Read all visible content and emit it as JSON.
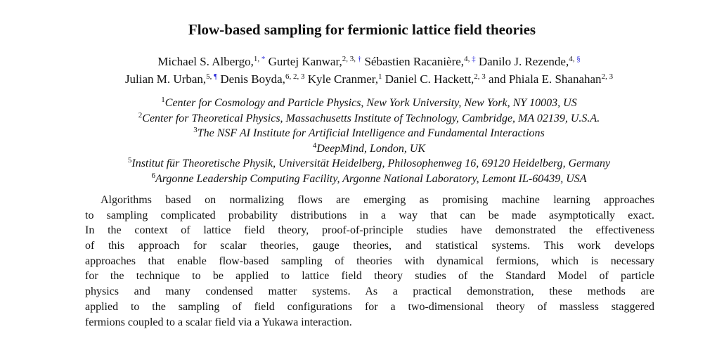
{
  "title": "Flow-based sampling for fermionic lattice field theories",
  "author_lines": [
    [
      {
        "name": "Michael S. Albergo,",
        "aff": "1,",
        "mark": "*"
      },
      {
        "name": "Gurtej Kanwar,",
        "aff": "2, 3,",
        "mark": "†"
      },
      {
        "name": "Sébastien Racanière,",
        "aff": "4,",
        "mark": "‡"
      },
      {
        "name": "Danilo J. Rezende,",
        "aff": "4,",
        "mark": "§"
      }
    ],
    [
      {
        "name": "Julian M. Urban,",
        "aff": "5,",
        "mark": "¶"
      },
      {
        "name": "Denis Boyda,",
        "aff": "6, 2, 3"
      },
      {
        "name": "Kyle Cranmer,",
        "aff": "1"
      },
      {
        "name": "Daniel C. Hackett,",
        "aff": "2, 3"
      },
      {
        "name": "and Phiala E. Shanahan",
        "aff": "2, 3"
      }
    ]
  ],
  "affiliations": [
    {
      "num": "1",
      "text": "Center for Cosmology and Particle Physics, New York University, New York, NY 10003, US"
    },
    {
      "num": "2",
      "text": "Center for Theoretical Physics, Massachusetts Institute of Technology, Cambridge, MA 02139, U.S.A."
    },
    {
      "num": "3",
      "text": "The NSF AI Institute for Artificial Intelligence and Fundamental Interactions"
    },
    {
      "num": "4",
      "text": "DeepMind, London, UK"
    },
    {
      "num": "5",
      "text": "Institut für Theoretische Physik, Universität Heidelberg, Philosophenweg 16, 69120 Heidelberg, Germany"
    },
    {
      "num": "6",
      "text": "Argonne Leadership Computing Facility, Argonne National Laboratory, Lemont IL-60439, USA"
    }
  ],
  "abstract_lines": [
    "Algorithms based on normalizing flows are emerging as promising machine learning approaches",
    "to sampling complicated probability distributions in a way that can be made asymptotically exact.",
    "In the context of lattice field theory, proof-of-principle studies have demonstrated the effectiveness",
    "of this approach for scalar theories, gauge theories, and statistical systems.  This work develops",
    "approaches that enable flow-based sampling of theories with dynamical fermions, which is necessary",
    "for the technique to be applied to lattice field theory studies of the Standard Model of particle",
    "physics and many condensed matter systems.  As a practical demonstration, these methods are",
    "applied to the sampling of field configurations for a two-dimensional theory of massless staggered",
    "fermions coupled to a scalar field via a Yukawa interaction."
  ]
}
